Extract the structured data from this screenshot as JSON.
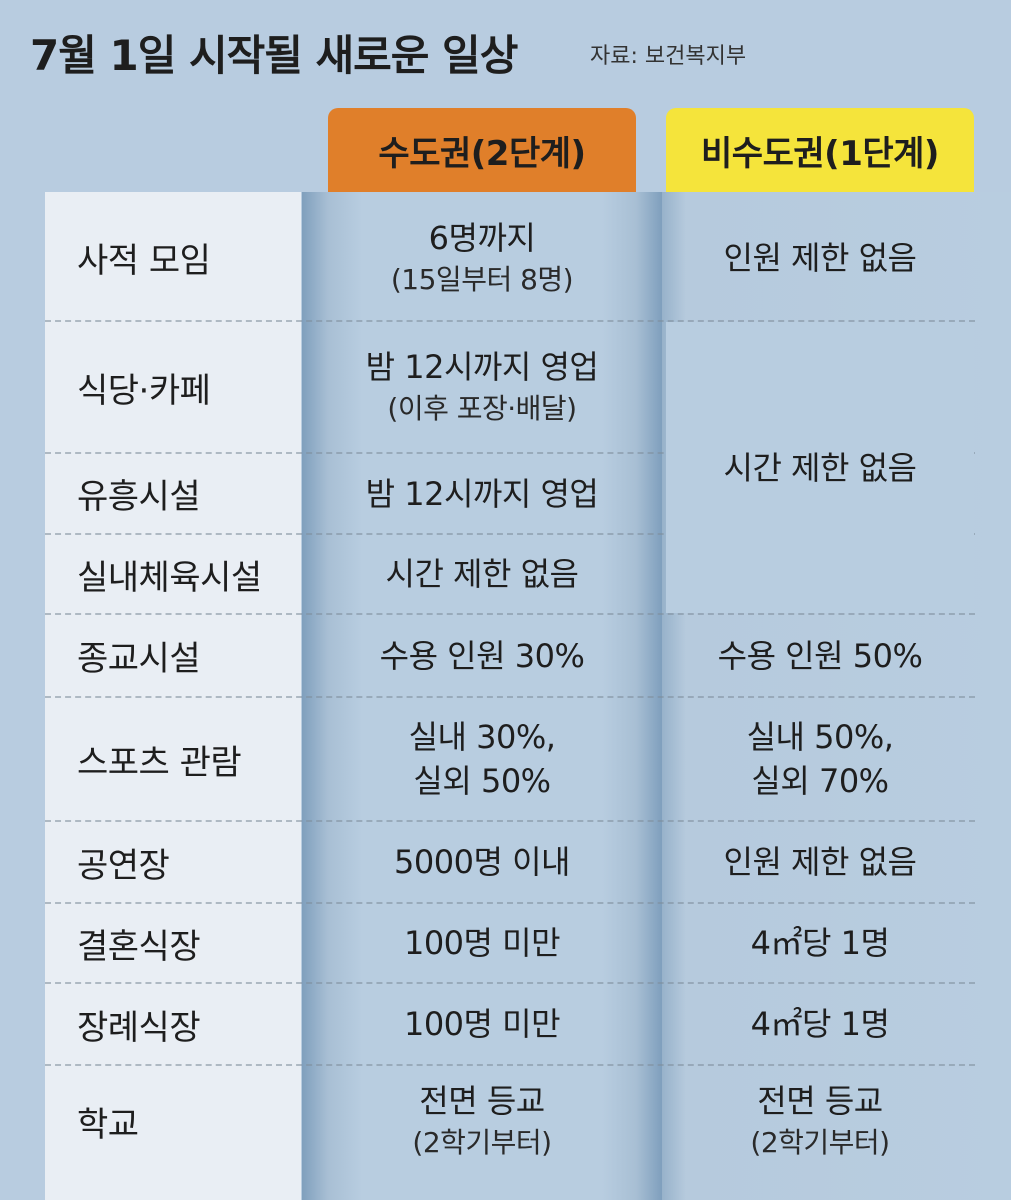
{
  "header": {
    "title": "7월 1일 시작될 새로운 일상",
    "source": "자료: 보건복지부"
  },
  "columns": {
    "metro": "수도권(2단계)",
    "nonmetro": "비수도권(1단계)"
  },
  "rows": [
    {
      "label": "사적 모임",
      "metro_main": "6명까지",
      "metro_sub": "(15일부터 8명)",
      "nonmetro_main": "인원 제한 없음",
      "nonmetro_sub": ""
    },
    {
      "label": "식당·카페",
      "metro_main": "밤 12시까지 영업",
      "metro_sub": "(이후 포장·배달)",
      "nonmetro_main": "시간 제한 없음",
      "nonmetro_sub": ""
    },
    {
      "label": "유흥시설",
      "metro_main": "밤 12시까지 영업",
      "metro_sub": "",
      "nonmetro_main": "",
      "nonmetro_sub": ""
    },
    {
      "label": "실내체육시설",
      "metro_main": "시간 제한 없음",
      "metro_sub": "",
      "nonmetro_main": "",
      "nonmetro_sub": ""
    },
    {
      "label": "종교시설",
      "metro_main": "수용 인원 30%",
      "metro_sub": "",
      "nonmetro_main": "수용 인원 50%",
      "nonmetro_sub": ""
    },
    {
      "label": "스포츠 관람",
      "metro_main": "실내 30%,",
      "metro_sub": "실외 50%",
      "nonmetro_main": "실내 50%,",
      "nonmetro_sub": "실외 70%"
    },
    {
      "label": "공연장",
      "metro_main": "5000명 이내",
      "metro_sub": "",
      "nonmetro_main": "인원 제한 없음",
      "nonmetro_sub": ""
    },
    {
      "label": "결혼식장",
      "metro_main": "100명 미만",
      "metro_sub": "",
      "nonmetro_main": "4㎡당 1명",
      "nonmetro_sub": ""
    },
    {
      "label": "장례식장",
      "metro_main": "100명 미만",
      "metro_sub": "",
      "nonmetro_main": "4㎡당 1명",
      "nonmetro_sub": ""
    },
    {
      "label": "학교",
      "metro_main": "전면 등교",
      "metro_sub": "(2학기부터)",
      "nonmetro_main": "전면 등교",
      "nonmetro_sub": "(2학기부터)"
    }
  ]
}
